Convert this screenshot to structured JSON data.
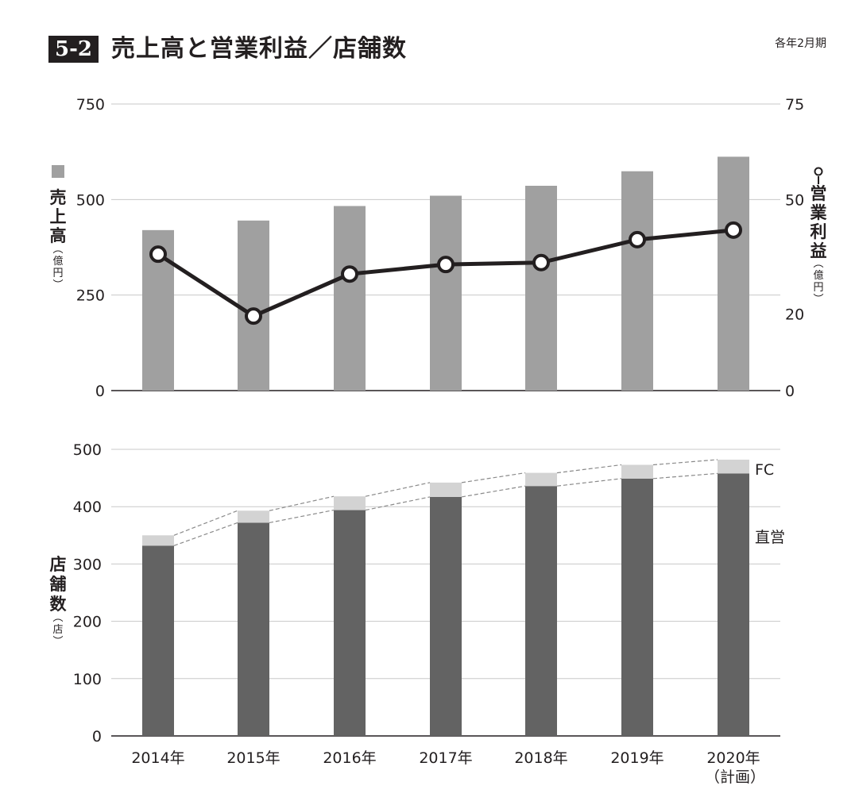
{
  "header": {
    "figure_number": "5-2",
    "title": "売上高と営業利益／店舗数",
    "period_note": "各年2月期"
  },
  "chart_data": [
    {
      "type": "bar",
      "title": "売上高と営業利益",
      "categories": [
        "2014年",
        "2015年",
        "2016年",
        "2017年",
        "2018年",
        "2019年",
        "2020年"
      ],
      "series": [
        {
          "name": "売上高",
          "axis": "left",
          "unit": "億円",
          "values": [
            420,
            445,
            483,
            510,
            536,
            574,
            612
          ]
        },
        {
          "name": "営業利益",
          "axis": "right",
          "unit": "億円",
          "type": "line",
          "values": [
            35.7,
            19.5,
            30.5,
            33,
            33.5,
            39.5,
            42
          ]
        }
      ],
      "left_axis": {
        "label_main": "売上高",
        "label_unit": "億円",
        "ylim": [
          0,
          750
        ],
        "ticks": [
          0,
          250,
          500,
          750
        ],
        "tick_labels": [
          "0",
          "250",
          "500",
          "750"
        ]
      },
      "right_axis": {
        "label_main": "営業利益",
        "label_unit": "億円",
        "ylim": [
          0,
          75
        ],
        "ticks": [
          0,
          20,
          50,
          75
        ],
        "tick_labels": [
          "0",
          "20",
          "50",
          "75"
        ]
      },
      "colors": {
        "bar": "#a0a0a0",
        "line": "#231f20",
        "marker_fill": "#ffffff",
        "grid": "#c8c8c8"
      }
    },
    {
      "type": "bar",
      "stacked": true,
      "title": "店舗数",
      "categories": [
        "2014年",
        "2015年",
        "2016年",
        "2017年",
        "2018年",
        "2019年",
        "2020年"
      ],
      "category_notes": [
        "",
        "",
        "",
        "",
        "",
        "",
        "（計画）"
      ],
      "series": [
        {
          "name": "直営",
          "values": [
            332,
            372,
            394,
            417,
            436,
            449,
            458
          ]
        },
        {
          "name": "FC",
          "values": [
            18,
            21,
            24,
            25,
            23,
            24,
            24
          ]
        }
      ],
      "axis": {
        "label_main": "店舗数",
        "label_unit": "店",
        "ylim": [
          0,
          500
        ],
        "ticks": [
          0,
          100,
          200,
          300,
          400,
          500
        ],
        "tick_labels": [
          "0",
          "100",
          "200",
          "300",
          "400",
          "500"
        ]
      },
      "colors": {
        "direct": "#636363",
        "fc": "#d3d3d3",
        "guide": "#8a8a8a",
        "grid": "#c8c8c8"
      }
    }
  ]
}
